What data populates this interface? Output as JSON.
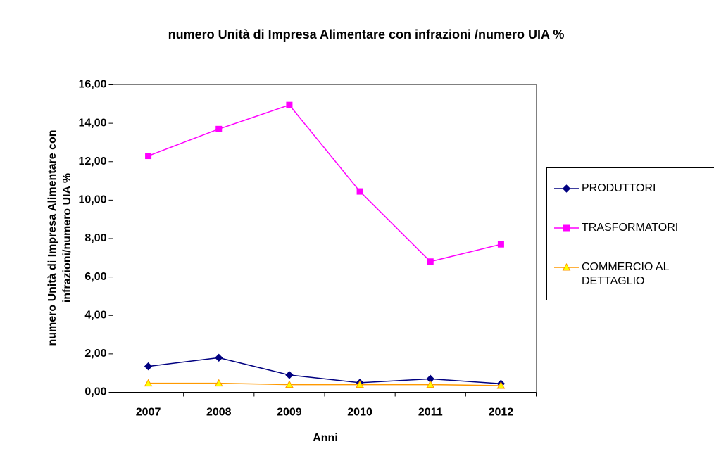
{
  "chart_data": {
    "type": "line",
    "title": "numero Unità di Impresa Alimentare con infrazioni /numero UIA %",
    "x_label": "Anni",
    "y_label": "numero Unità di Impresa Alimentare con infrazioni/numero UIA %",
    "categories": [
      "2007",
      "2008",
      "2009",
      "2010",
      "2011",
      "2012"
    ],
    "series": [
      {
        "name": "PRODUTTORI",
        "color": "#000080",
        "marker": "diamond",
        "values": [
          1.35,
          1.8,
          0.9,
          0.5,
          0.7,
          0.45
        ]
      },
      {
        "name": "TRASFORMATORI",
        "color": "#ff00ff",
        "marker": "square",
        "values": [
          12.3,
          13.7,
          14.95,
          10.45,
          6.8,
          7.7
        ]
      },
      {
        "name": "COMMERCIO AL DETTAGLIO",
        "color": "#ff9900",
        "marker": "triangle",
        "values": [
          0.47,
          0.47,
          0.4,
          0.4,
          0.4,
          0.35
        ]
      }
    ],
    "ylim": [
      0,
      16
    ],
    "yticks": [
      {
        "value": 0,
        "label": "0,00"
      },
      {
        "value": 2,
        "label": "2,00"
      },
      {
        "value": 4,
        "label": "4,00"
      },
      {
        "value": 6,
        "label": "6,00"
      },
      {
        "value": 8,
        "label": "8,00"
      },
      {
        "value": 10,
        "label": "10,00"
      },
      {
        "value": 12,
        "label": "12,00"
      },
      {
        "value": 14,
        "label": "14,00"
      },
      {
        "value": 16,
        "label": "16,00"
      }
    ],
    "grid": false,
    "legend": "right"
  }
}
